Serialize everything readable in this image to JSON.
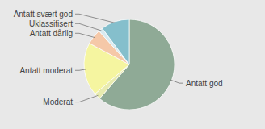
{
  "chart_data": {
    "type": "pie",
    "categories": [
      "Antatt god",
      "Moderat",
      "Antatt moderat",
      "Antatt dårlig",
      "Uklassifisert",
      "Antatt svært god"
    ],
    "values": [
      61.4,
      2.3,
      19.1,
      5.5,
      1.5,
      10.2
    ],
    "colors": [
      "#8faa96",
      "#e8ebb0",
      "#f5f5a0",
      "#f5c8a8",
      "#d8eaf0",
      "#85bfcc"
    ]
  }
}
